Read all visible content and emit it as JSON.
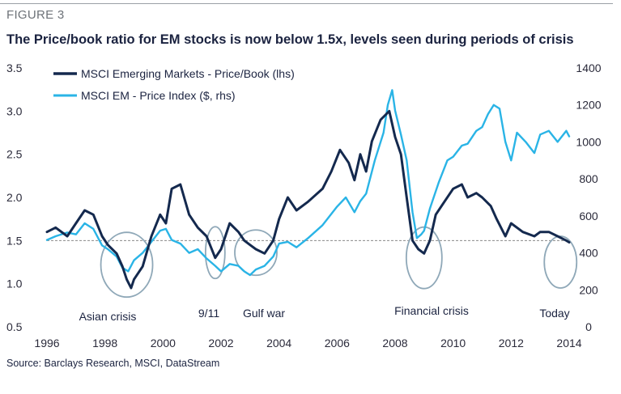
{
  "figure_label": "FIGURE 3",
  "source": "Source: Barclays Research, MSCI, DataStream",
  "chart_data": {
    "type": "line",
    "title": "The Price/book ratio for EM stocks is now below 1.5x, levels seen during periods of crisis",
    "colors": {
      "pb": "#14294e",
      "price": "#2ab4e6",
      "reference": "#8a8a8a",
      "circle": "#8fa8b8"
    },
    "x_ticks": [
      "1996",
      "1998",
      "2000",
      "2002",
      "2004",
      "2006",
      "2008",
      "2010",
      "2012",
      "2014"
    ],
    "x_range": [
      1996,
      2014
    ],
    "y_left": {
      "range": [
        0.5,
        3.5
      ],
      "ticks": [
        "0.5",
        "1.0",
        "1.5",
        "2.0",
        "2.5",
        "3.0",
        "3.5"
      ]
    },
    "y_right": {
      "range": [
        0,
        1400
      ],
      "ticks": [
        "0",
        "200",
        "400",
        "600",
        "800",
        "1000",
        "1200",
        "1400"
      ]
    },
    "reference_line": 1.5,
    "series": [
      {
        "name": "MSCI Emerging Markets - Price/Book (lhs)",
        "axis": "left",
        "x": [
          1996.0,
          1996.3,
          1996.7,
          1997.0,
          1997.3,
          1997.6,
          1997.9,
          1998.1,
          1998.4,
          1998.6,
          1998.75,
          1998.9,
          1999.0,
          1999.3,
          1999.6,
          1999.9,
          2000.1,
          2000.3,
          2000.6,
          2000.9,
          2001.2,
          2001.5,
          2001.8,
          2002.0,
          2002.3,
          2002.6,
          2002.8,
          2003.0,
          2003.2,
          2003.5,
          2003.8,
          2004.0,
          2004.3,
          2004.6,
          2005.0,
          2005.5,
          2005.8,
          2006.1,
          2006.4,
          2006.6,
          2006.8,
          2007.0,
          2007.2,
          2007.5,
          2007.8,
          2008.0,
          2008.2,
          2008.4,
          2008.6,
          2008.8,
          2009.0,
          2009.2,
          2009.4,
          2009.7,
          2010.0,
          2010.3,
          2010.5,
          2010.8,
          2011.0,
          2011.3,
          2011.5,
          2011.8,
          2012.0,
          2012.4,
          2012.8,
          2013.0,
          2013.3,
          2013.6,
          2013.9,
          2014.0
        ],
        "values": [
          1.6,
          1.65,
          1.55,
          1.7,
          1.85,
          1.8,
          1.55,
          1.45,
          1.35,
          1.2,
          1.05,
          0.95,
          1.05,
          1.2,
          1.55,
          1.8,
          1.7,
          2.1,
          2.15,
          1.8,
          1.65,
          1.55,
          1.3,
          1.4,
          1.7,
          1.6,
          1.5,
          1.45,
          1.4,
          1.35,
          1.5,
          1.75,
          2.0,
          1.85,
          1.95,
          2.1,
          2.3,
          2.55,
          2.4,
          2.2,
          2.5,
          2.3,
          2.65,
          2.9,
          3.0,
          2.7,
          2.5,
          2.0,
          1.5,
          1.4,
          1.35,
          1.5,
          1.8,
          1.95,
          2.1,
          2.15,
          2.0,
          2.05,
          2.0,
          1.9,
          1.75,
          1.55,
          1.7,
          1.6,
          1.55,
          1.6,
          1.6,
          1.55,
          1.5,
          1.48
        ]
      },
      {
        "name": "MSCI EM - Price Index ($, rhs)",
        "axis": "right",
        "x": [
          1996.0,
          1996.3,
          1996.7,
          1997.0,
          1997.3,
          1997.6,
          1997.9,
          1998.1,
          1998.4,
          1998.6,
          1998.8,
          1999.0,
          1999.3,
          1999.6,
          1999.9,
          2000.1,
          2000.3,
          2000.6,
          2000.9,
          2001.2,
          2001.5,
          2001.8,
          2002.0,
          2002.3,
          2002.6,
          2002.8,
          2003.0,
          2003.2,
          2003.5,
          2003.8,
          2004.0,
          2004.3,
          2004.6,
          2005.0,
          2005.5,
          2006.0,
          2006.3,
          2006.6,
          2006.8,
          2007.0,
          2007.3,
          2007.6,
          2007.75,
          2007.9,
          2008.0,
          2008.2,
          2008.4,
          2008.6,
          2008.75,
          2008.9,
          2009.0,
          2009.2,
          2009.5,
          2009.8,
          2010.0,
          2010.3,
          2010.5,
          2010.8,
          2011.0,
          2011.2,
          2011.4,
          2011.6,
          2011.8,
          2012.0,
          2012.2,
          2012.5,
          2012.8,
          2013.0,
          2013.3,
          2013.6,
          2013.9,
          2014.0
        ],
        "values": [
          470,
          490,
          510,
          500,
          560,
          530,
          440,
          420,
          380,
          320,
          300,
          360,
          400,
          460,
          520,
          530,
          470,
          450,
          400,
          420,
          370,
          330,
          300,
          340,
          330,
          300,
          280,
          310,
          330,
          380,
          450,
          460,
          430,
          480,
          550,
          650,
          700,
          620,
          680,
          720,
          900,
          1050,
          1200,
          1280,
          1170,
          1040,
          900,
          620,
          480,
          500,
          520,
          640,
          780,
          900,
          920,
          980,
          990,
          1060,
          1080,
          1150,
          1200,
          1180,
          1000,
          900,
          1050,
          1000,
          940,
          1040,
          1060,
          1000,
          1060,
          1030
        ]
      }
    ],
    "annotations": [
      {
        "label": "Asian crisis",
        "x": 1998.75,
        "y_left": 1.22
      },
      {
        "label": "9/11",
        "x": 2001.8,
        "y_left": 1.36
      },
      {
        "label": "Gulf war",
        "x": 2003.2,
        "y_left": 1.36
      },
      {
        "label": "Financial crisis",
        "x": 2009.0,
        "y_left": 1.3
      },
      {
        "label": "Today",
        "x": 2013.7,
        "y_left": 1.25
      }
    ]
  }
}
